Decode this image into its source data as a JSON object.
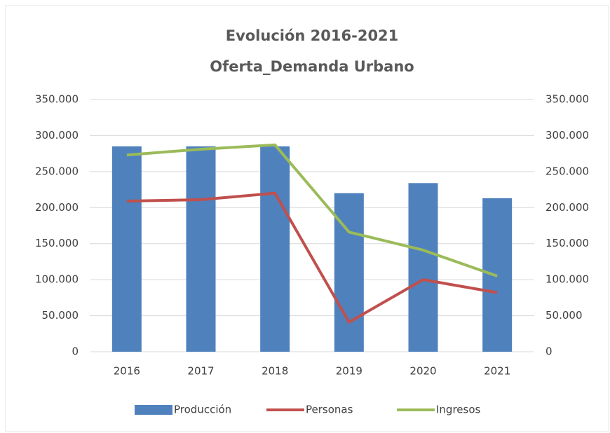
{
  "chart_data": {
    "type": "bar_line",
    "title": [
      "Evolución 2016-2021",
      "Oferta_Demanda Urbano"
    ],
    "categories": [
      "2016",
      "2017",
      "2018",
      "2019",
      "2020",
      "2021"
    ],
    "series": [
      {
        "name": "Producción",
        "type": "bar",
        "color": "#4f81bd",
        "values": [
          285000,
          285000,
          285000,
          220000,
          234000,
          213000
        ]
      },
      {
        "name": "Personas",
        "type": "line",
        "axis": "y2",
        "color": "#c0504d",
        "values": [
          209000,
          211000,
          220000,
          41000,
          100000,
          82000
        ]
      },
      {
        "name": "Ingresos",
        "type": "line",
        "axis": "y2",
        "color": "#9bbb59",
        "values": [
          273000,
          281000,
          287000,
          166000,
          141000,
          105000
        ]
      }
    ],
    "ylim": [
      0,
      350000
    ],
    "yticks": [
      0,
      {
        "value": 50000,
        "label": "50.000"
      },
      {
        "value": 100000,
        "label": "100.000"
      },
      {
        "value": 150000,
        "label": "150.000"
      },
      {
        "value": 200000,
        "label": "200.000"
      },
      {
        "value": 250000,
        "label": "250.000"
      },
      {
        "value": 300000,
        "label": "300.000"
      },
      {
        "value": 350000,
        "label": "350.000"
      }
    ],
    "y2lim": [
      0,
      350000
    ],
    "y2ticks": [
      0,
      {
        "value": 50000,
        "label": "50.000"
      },
      {
        "value": 100000,
        "label": "100.000"
      },
      {
        "value": 150000,
        "label": "150.000"
      },
      {
        "value": 200000,
        "label": "200.000"
      },
      {
        "value": 250000,
        "label": "250.000"
      },
      {
        "value": 300000,
        "label": "300.000"
      },
      {
        "value": 350000,
        "label": "350.000"
      }
    ],
    "grid": true,
    "legend": "bottom"
  }
}
